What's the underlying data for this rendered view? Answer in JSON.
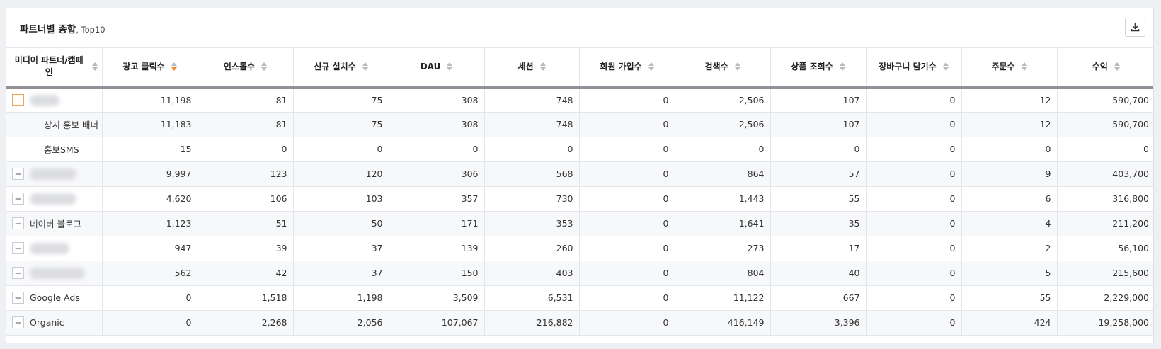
{
  "card": {
    "title": "파트너별 종합",
    "subtitle": ", Top10",
    "download_icon": "download-icon"
  },
  "columns": [
    {
      "label": "미디어 파트너/캠페인"
    },
    {
      "label": "광고 클릭수",
      "sort": "desc"
    },
    {
      "label": "인스톨수"
    },
    {
      "label": "신규 설치수"
    },
    {
      "label": "DAU"
    },
    {
      "label": "세션"
    },
    {
      "label": "회원 가입수"
    },
    {
      "label": "검색수"
    },
    {
      "label": "상품 조회수"
    },
    {
      "label": "장바구니 담기수"
    },
    {
      "label": "주문수"
    },
    {
      "label": "수익"
    }
  ],
  "rows": [
    {
      "toggle": "-",
      "name": "",
      "redacted": true,
      "level": 0,
      "values": [
        "11,198",
        "81",
        "75",
        "308",
        "748",
        "0",
        "2,506",
        "107",
        "0",
        "12",
        "590,700"
      ]
    },
    {
      "toggle": "",
      "name": "상시 홍보 배너",
      "redacted": false,
      "level": 1,
      "values": [
        "11,183",
        "81",
        "75",
        "308",
        "748",
        "0",
        "2,506",
        "107",
        "0",
        "12",
        "590,700"
      ]
    },
    {
      "toggle": "",
      "name": "홍보SMS",
      "redacted": false,
      "level": 1,
      "values": [
        "15",
        "0",
        "0",
        "0",
        "0",
        "0",
        "0",
        "0",
        "0",
        "0",
        "0"
      ]
    },
    {
      "toggle": "+",
      "name": "",
      "redacted": true,
      "level": 0,
      "values": [
        "9,997",
        "123",
        "120",
        "306",
        "568",
        "0",
        "864",
        "57",
        "0",
        "9",
        "403,700"
      ]
    },
    {
      "toggle": "+",
      "name": "",
      "redacted": true,
      "level": 0,
      "values": [
        "4,620",
        "106",
        "103",
        "357",
        "730",
        "0",
        "1,443",
        "55",
        "0",
        "6",
        "316,800"
      ]
    },
    {
      "toggle": "+",
      "name": "네이버 블로그",
      "redacted": false,
      "level": 0,
      "values": [
        "1,123",
        "51",
        "50",
        "171",
        "353",
        "0",
        "1,641",
        "35",
        "0",
        "4",
        "211,200"
      ]
    },
    {
      "toggle": "+",
      "name": "",
      "redacted": true,
      "level": 0,
      "values": [
        "947",
        "39",
        "37",
        "139",
        "260",
        "0",
        "273",
        "17",
        "0",
        "2",
        "56,100"
      ]
    },
    {
      "toggle": "+",
      "name": "",
      "redacted": true,
      "level": 0,
      "values": [
        "562",
        "42",
        "37",
        "150",
        "403",
        "0",
        "804",
        "40",
        "0",
        "5",
        "215,600"
      ]
    },
    {
      "toggle": "+",
      "name": "Google Ads",
      "redacted": false,
      "level": 0,
      "values": [
        "0",
        "1,518",
        "1,198",
        "3,509",
        "6,531",
        "0",
        "11,122",
        "667",
        "0",
        "55",
        "2,229,000"
      ]
    },
    {
      "toggle": "+",
      "name": "Organic",
      "redacted": false,
      "level": 0,
      "values": [
        "0",
        "2,268",
        "2,056",
        "107,067",
        "216,882",
        "0",
        "416,149",
        "3,396",
        "0",
        "424",
        "19,258,000"
      ]
    }
  ]
}
